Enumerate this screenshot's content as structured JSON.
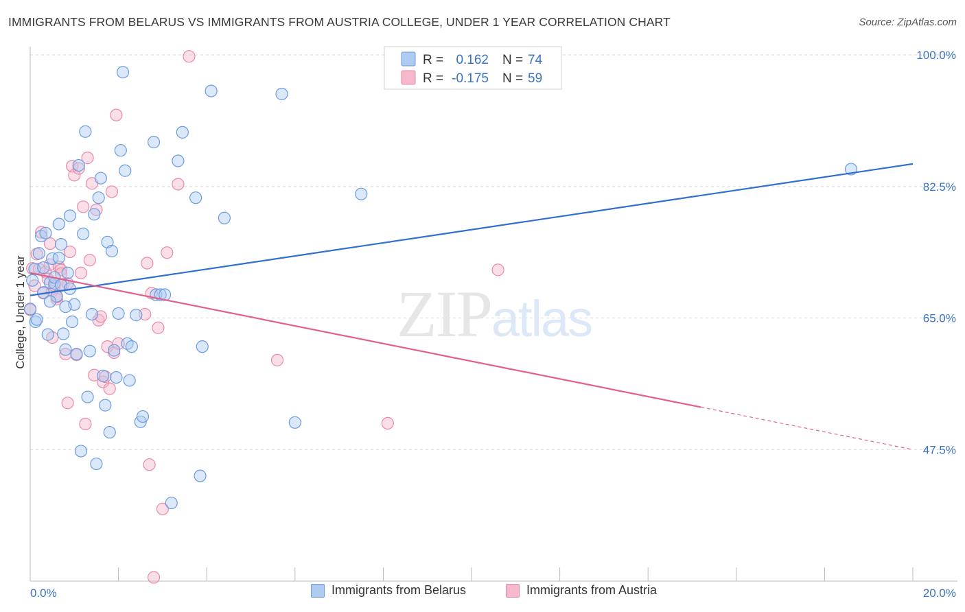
{
  "title": "IMMIGRANTS FROM BELARUS VS IMMIGRANTS FROM AUSTRIA COLLEGE, UNDER 1 YEAR CORRELATION CHART",
  "source": "Source: ZipAtlas.com",
  "watermark": "ZIPatlas",
  "colors": {
    "belarus_fill": "#aecbf2",
    "belarus_stroke": "#6b9be0",
    "belarus_line": "#2f6fcf",
    "austria_fill": "#f6b8cc",
    "austria_stroke": "#e98aa8",
    "austria_line": "#e0608c",
    "tick": "#3a72c4",
    "grid": "#d9d9d9"
  },
  "legend": {
    "rows": [
      {
        "r_label": "R =",
        "r_value": "0.162",
        "n_label": "N =",
        "n_value": "74"
      },
      {
        "r_label": "R =",
        "r_value": "-0.175",
        "n_label": "N =",
        "n_value": "59"
      }
    ]
  },
  "bottom_legend": {
    "items": [
      "Immigrants from Belarus",
      "Immigrants from Austria"
    ]
  },
  "chart_data": {
    "type": "scatter",
    "title": "IMMIGRANTS FROM BELARUS VS IMMIGRANTS FROM AUSTRIA COLLEGE, UNDER 1 YEAR CORRELATION CHART",
    "xlabel": "",
    "ylabel": "College, Under 1 year",
    "xlim": [
      0,
      20
    ],
    "ylim": [
      30,
      100
    ],
    "x_ticks": [
      "0.0%",
      "20.0%"
    ],
    "y_ticks": [
      {
        "value": 100,
        "label": "100.0%"
      },
      {
        "value": 82.5,
        "label": "82.5%"
      },
      {
        "value": 65,
        "label": "65.0%"
      },
      {
        "value": 47.5,
        "label": "47.5%"
      }
    ],
    "grid": true,
    "legend_position": "top-center",
    "series": [
      {
        "name": "Immigrants from Belarus",
        "r": 0.162,
        "n": 74,
        "trend": {
          "x": [
            0,
            20
          ],
          "y": [
            68.0,
            85.5
          ],
          "dashed_from": null
        },
        "points": [
          [
            0.0,
            66.2
          ],
          [
            0.1,
            71.5
          ],
          [
            0.12,
            64.5
          ],
          [
            0.2,
            73.6
          ],
          [
            0.25,
            75.9
          ],
          [
            0.3,
            68.4
          ],
          [
            0.35,
            76.3
          ],
          [
            0.4,
            62.8
          ],
          [
            0.45,
            69.7
          ],
          [
            0.5,
            72.9
          ],
          [
            0.55,
            69.6
          ],
          [
            0.6,
            67.9
          ],
          [
            0.65,
            77.5
          ],
          [
            0.7,
            74.8
          ],
          [
            0.75,
            62.9
          ],
          [
            0.8,
            60.8
          ],
          [
            0.85,
            71.0
          ],
          [
            0.9,
            78.6
          ],
          [
            0.95,
            64.5
          ],
          [
            1.0,
            66.8
          ],
          [
            1.05,
            60.2
          ],
          [
            1.1,
            85.3
          ],
          [
            1.15,
            47.3
          ],
          [
            1.2,
            76.2
          ],
          [
            1.25,
            89.8
          ],
          [
            1.3,
            54.5
          ],
          [
            1.35,
            60.6
          ],
          [
            1.4,
            65.5
          ],
          [
            1.45,
            78.8
          ],
          [
            1.5,
            45.6
          ],
          [
            1.55,
            81.0
          ],
          [
            1.6,
            83.6
          ],
          [
            1.65,
            57.3
          ],
          [
            1.7,
            53.4
          ],
          [
            1.75,
            75.1
          ],
          [
            1.8,
            49.8
          ],
          [
            1.85,
            73.9
          ],
          [
            1.9,
            60.7
          ],
          [
            1.95,
            57.1
          ],
          [
            2.0,
            65.6
          ],
          [
            2.05,
            87.3
          ],
          [
            2.1,
            97.7
          ],
          [
            2.15,
            84.6
          ],
          [
            2.2,
            61.6
          ],
          [
            2.25,
            56.7
          ],
          [
            2.3,
            61.2
          ],
          [
            2.4,
            65.4
          ],
          [
            2.5,
            51.2
          ],
          [
            2.55,
            51.9
          ],
          [
            2.8,
            88.4
          ],
          [
            2.85,
            68.1
          ],
          [
            2.95,
            68.1
          ],
          [
            3.05,
            68.1
          ],
          [
            3.2,
            40.4
          ],
          [
            3.35,
            85.9
          ],
          [
            3.45,
            89.7
          ],
          [
            3.75,
            81.0
          ],
          [
            3.85,
            44.0
          ],
          [
            3.9,
            61.2
          ],
          [
            4.1,
            95.2
          ],
          [
            4.4,
            78.3
          ],
          [
            5.7,
            94.8
          ],
          [
            6.0,
            51.1
          ],
          [
            7.5,
            81.5
          ],
          [
            18.6,
            84.8
          ],
          [
            0.05,
            70.0
          ],
          [
            0.15,
            64.8
          ],
          [
            0.55,
            70.4
          ],
          [
            0.7,
            69.4
          ],
          [
            0.9,
            68.9
          ],
          [
            0.65,
            73.0
          ],
          [
            0.8,
            66.5
          ],
          [
            0.45,
            67.2
          ],
          [
            0.3,
            71.7
          ]
        ]
      },
      {
        "name": "Immigrants from Austria",
        "r": -0.175,
        "n": 59,
        "trend": {
          "x": [
            0,
            20
          ],
          "y": [
            71.0,
            47.5
          ],
          "dashed_from": 15.2
        },
        "points": [
          [
            0.0,
            66.1
          ],
          [
            0.05,
            71.6
          ],
          [
            0.1,
            69.3
          ],
          [
            0.15,
            73.5
          ],
          [
            0.2,
            71.5
          ],
          [
            0.25,
            76.4
          ],
          [
            0.3,
            68.3
          ],
          [
            0.35,
            71.1
          ],
          [
            0.4,
            70.2
          ],
          [
            0.45,
            72.1
          ],
          [
            0.5,
            68.6
          ],
          [
            0.55,
            69.3
          ],
          [
            0.6,
            67.5
          ],
          [
            0.65,
            71.8
          ],
          [
            0.7,
            71.4
          ],
          [
            0.75,
            69.5
          ],
          [
            0.8,
            60.2
          ],
          [
            0.85,
            53.7
          ],
          [
            0.9,
            73.8
          ],
          [
            0.95,
            85.2
          ],
          [
            1.0,
            84.0
          ],
          [
            1.05,
            60.1
          ],
          [
            1.1,
            84.9
          ],
          [
            1.15,
            71.0
          ],
          [
            1.2,
            79.8
          ],
          [
            1.25,
            50.9
          ],
          [
            1.3,
            86.3
          ],
          [
            1.35,
            72.7
          ],
          [
            1.4,
            82.9
          ],
          [
            1.45,
            57.4
          ],
          [
            1.5,
            79.4
          ],
          [
            1.55,
            64.7
          ],
          [
            1.6,
            65.2
          ],
          [
            1.65,
            56.5
          ],
          [
            1.7,
            57.2
          ],
          [
            1.75,
            61.2
          ],
          [
            1.8,
            55.6
          ],
          [
            1.85,
            81.8
          ],
          [
            1.9,
            60.4
          ],
          [
            1.95,
            92.0
          ],
          [
            2.0,
            61.6
          ],
          [
            2.6,
            65.5
          ],
          [
            2.65,
            72.3
          ],
          [
            2.7,
            45.5
          ],
          [
            2.75,
            68.3
          ],
          [
            2.8,
            30.5
          ],
          [
            2.9,
            63.7
          ],
          [
            3.0,
            39.6
          ],
          [
            3.1,
            73.7
          ],
          [
            3.35,
            82.8
          ],
          [
            3.6,
            99.8
          ],
          [
            5.6,
            59.4
          ],
          [
            8.1,
            51.0
          ],
          [
            10.6,
            71.4
          ],
          [
            0.45,
            74.9
          ],
          [
            0.6,
            67.8
          ],
          [
            0.7,
            70.9
          ],
          [
            0.85,
            69.6
          ],
          [
            0.5,
            62.4
          ]
        ]
      }
    ]
  }
}
